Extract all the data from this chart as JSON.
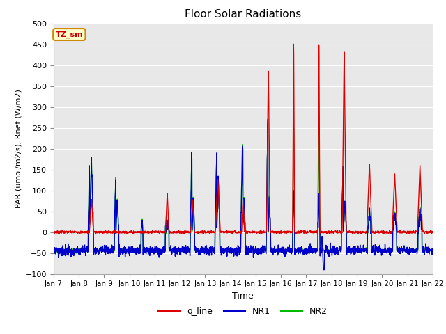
{
  "title": "Floor Solar Radiations",
  "xlabel": "Time",
  "ylabel": "PAR (umol/m2/s), Rnet (W/m2)",
  "ylim": [
    -100,
    500
  ],
  "yticks": [
    -100,
    -50,
    0,
    50,
    100,
    150,
    200,
    250,
    300,
    350,
    400,
    450,
    500
  ],
  "xtick_labels": [
    "Jan 7",
    "Jan 8",
    "Jan 9",
    "Jan 10",
    "Jan 11",
    "Jan 12",
    "Jan 13",
    "Jan 14",
    "Jan 15",
    "Jan 16",
    "Jan 17",
    "Jan 18",
    "Jan 19",
    "Jan 20",
    "Jan 21",
    "Jan 22"
  ],
  "bg_color": "#e8e8e8",
  "fig_bg_color": "#ffffff",
  "grid_color": "#ffffff",
  "line_colors": {
    "q_line": "#dd0000",
    "NR1": "#0000cc",
    "NR2": "#00bb00"
  },
  "line_widths": {
    "q_line": 1.0,
    "NR1": 1.0,
    "NR2": 1.0
  },
  "tag_text": "TZ_sm",
  "tag_facecolor": "#ffffcc",
  "tag_edgecolor": "#cc8800",
  "tag_textcolor": "#cc0000",
  "n_days": 15,
  "pts_per_day": 144,
  "day_start": 0.3,
  "day_end": 0.7
}
